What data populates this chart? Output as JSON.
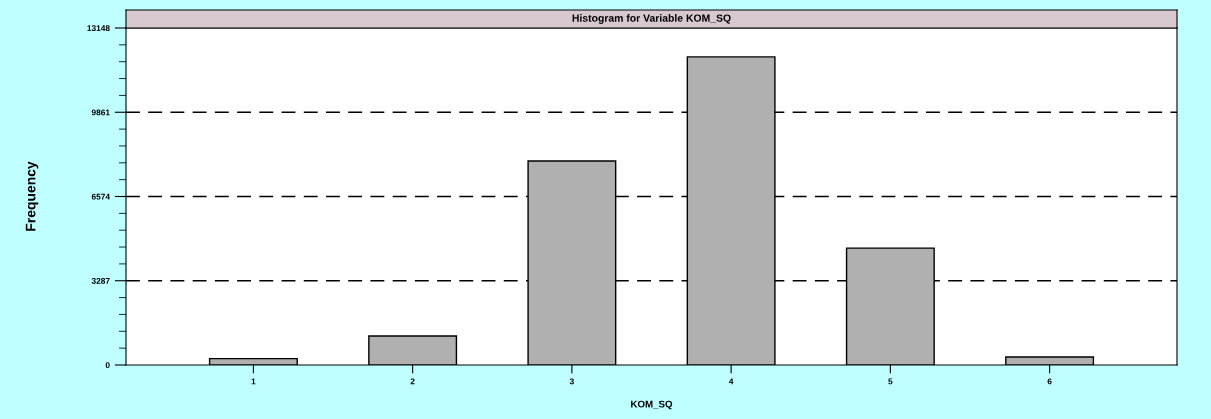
{
  "chart_data": {
    "type": "bar",
    "title": "Histogram for Variable KOM_SQ",
    "xlabel": "KOM_SQ",
    "ylabel": "Frequency",
    "categories": [
      "1",
      "2",
      "3",
      "4",
      "5",
      "6"
    ],
    "values": [
      250,
      1130,
      7960,
      12020,
      4560,
      310
    ],
    "color": "#b0b0b0",
    "ylim": [
      0,
      13148
    ],
    "yticks": [
      0,
      3287,
      6574,
      9861,
      13148
    ],
    "grid": "y"
  }
}
